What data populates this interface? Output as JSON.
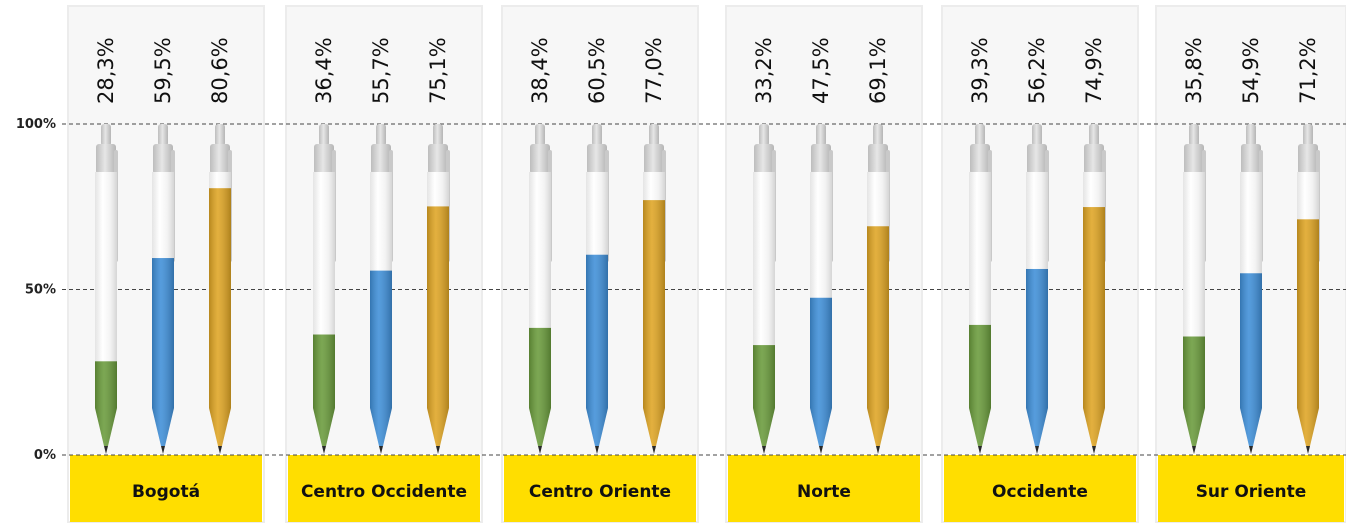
{
  "chart_data": {
    "type": "bar",
    "y_ticks": [
      "0%",
      "50%",
      "100%"
    ],
    "ylim": [
      0,
      100
    ],
    "grid": true,
    "categories": [
      "Bogotá",
      "Centro Occidente",
      "Centro Oriente",
      "Norte",
      "Occidente",
      "Sur Oriente"
    ],
    "series": [
      {
        "color": "#6a9b3c",
        "values": [
          28.3,
          36.4,
          38.4,
          33.2,
          39.3,
          35.8
        ],
        "labels": [
          "28,3%",
          "36,4%",
          "38,4%",
          "33,2%",
          "39,3%",
          "35,8%"
        ]
      },
      {
        "color": "#3f8fd8",
        "values": [
          59.5,
          55.7,
          60.5,
          47.5,
          56.2,
          54.9
        ],
        "labels": [
          "59,5%",
          "55,7%",
          "60,5%",
          "47,5%",
          "56,2%",
          "54,9%"
        ]
      },
      {
        "color": "#dfa524",
        "values": [
          80.6,
          75.1,
          77.0,
          69.1,
          74.9,
          71.2
        ],
        "labels": [
          "80,6%",
          "75,1%",
          "77,0%",
          "69,1%",
          "74,9%",
          "71,2%"
        ]
      }
    ]
  }
}
